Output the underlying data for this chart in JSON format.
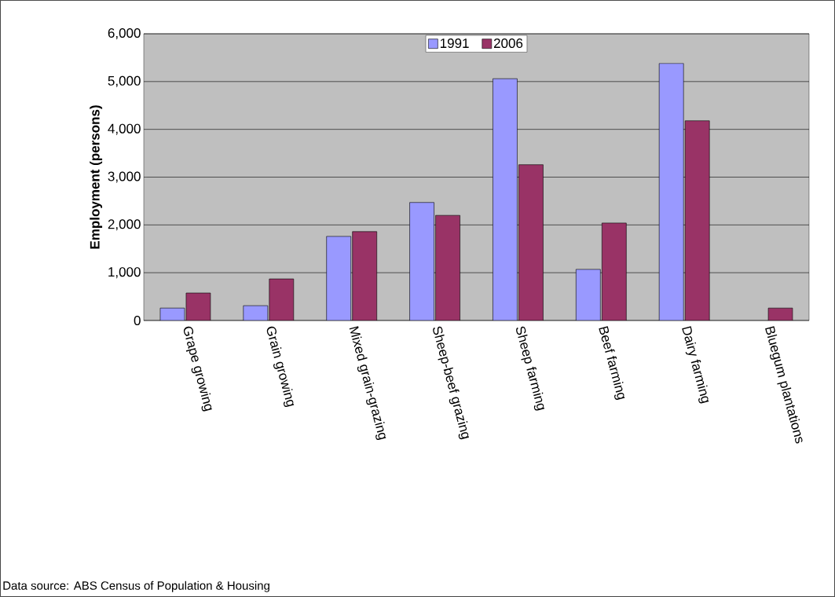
{
  "chart_data": {
    "type": "bar",
    "ylabel": "Employment (persons)",
    "categories": [
      "Grape growing",
      "Grain growing",
      "Mixed grain-grazing",
      "Sheep-beef grazing",
      "Sheep farming",
      "Beef farming",
      "Dairy farming",
      "Bluegum plantations"
    ],
    "series": [
      {
        "name": "1991",
        "color": "#9999ff",
        "values": [
          260,
          310,
          1760,
          2470,
          5060,
          1070,
          5380,
          null
        ]
      },
      {
        "name": "2006",
        "color": "#993366",
        "values": [
          575,
          870,
          1860,
          2200,
          3260,
          2040,
          4180,
          260
        ]
      }
    ],
    "ylim": [
      0,
      6000
    ],
    "yticks": [
      {
        "value": 0,
        "label": "0"
      },
      {
        "value": 1000,
        "label": "1,000"
      },
      {
        "value": 2000,
        "label": "2,000"
      },
      {
        "value": 3000,
        "label": "3,000"
      },
      {
        "value": 4000,
        "label": "4,000"
      },
      {
        "value": 5000,
        "label": "5,000"
      },
      {
        "value": 6000,
        "label": "6,000"
      }
    ],
    "grid": "y",
    "legend": "top",
    "annotations": [
      "Data source: ABS Census of Population & Housing"
    ]
  }
}
